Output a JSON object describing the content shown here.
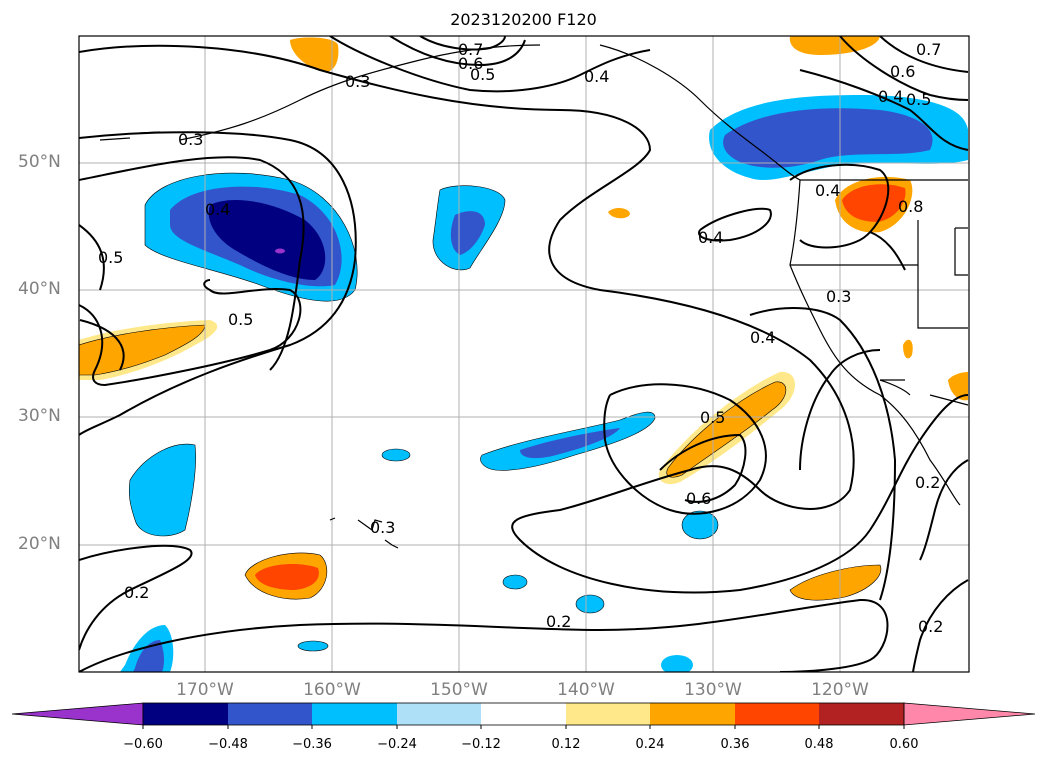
{
  "title": "2023120200 F120",
  "latitude_labels": [
    "50°N",
    "40°N",
    "30°N",
    "20°N"
  ],
  "longitude_labels": [
    "170°W",
    "160°W",
    "150°W",
    "140°W",
    "130°W",
    "120°W"
  ],
  "contour_labels": [
    "0.7",
    "0.6",
    "0.5",
    "0.3",
    "0.4",
    "0.3",
    "0.4",
    "0.5",
    "0.5",
    "0.4",
    "0.3",
    "0.4",
    "0.5",
    "0.6",
    "0.3",
    "0.2",
    "0.2",
    "0.2",
    "0.2",
    "0.7",
    "0.6",
    "0.5",
    "0.4",
    "0.8"
  ],
  "colorbar": {
    "tick_labels": [
      "−0.60",
      "−0.48",
      "−0.36",
      "−0.24",
      "−0.12",
      "0.12",
      "0.24",
      "0.36",
      "0.48",
      "0.60"
    ],
    "colors": [
      "#9933cc",
      "#000080",
      "#3355cc",
      "#00bfff",
      "#aee0f8",
      "#ffffff",
      "#ffe88a",
      "#ffa500",
      "#ff4500",
      "#b22222",
      "#ff88aa"
    ]
  },
  "colors": {
    "contour": "#000000",
    "coastline": "#000000",
    "grid": "#b0b0b0",
    "axis_labels": "#808080"
  }
}
